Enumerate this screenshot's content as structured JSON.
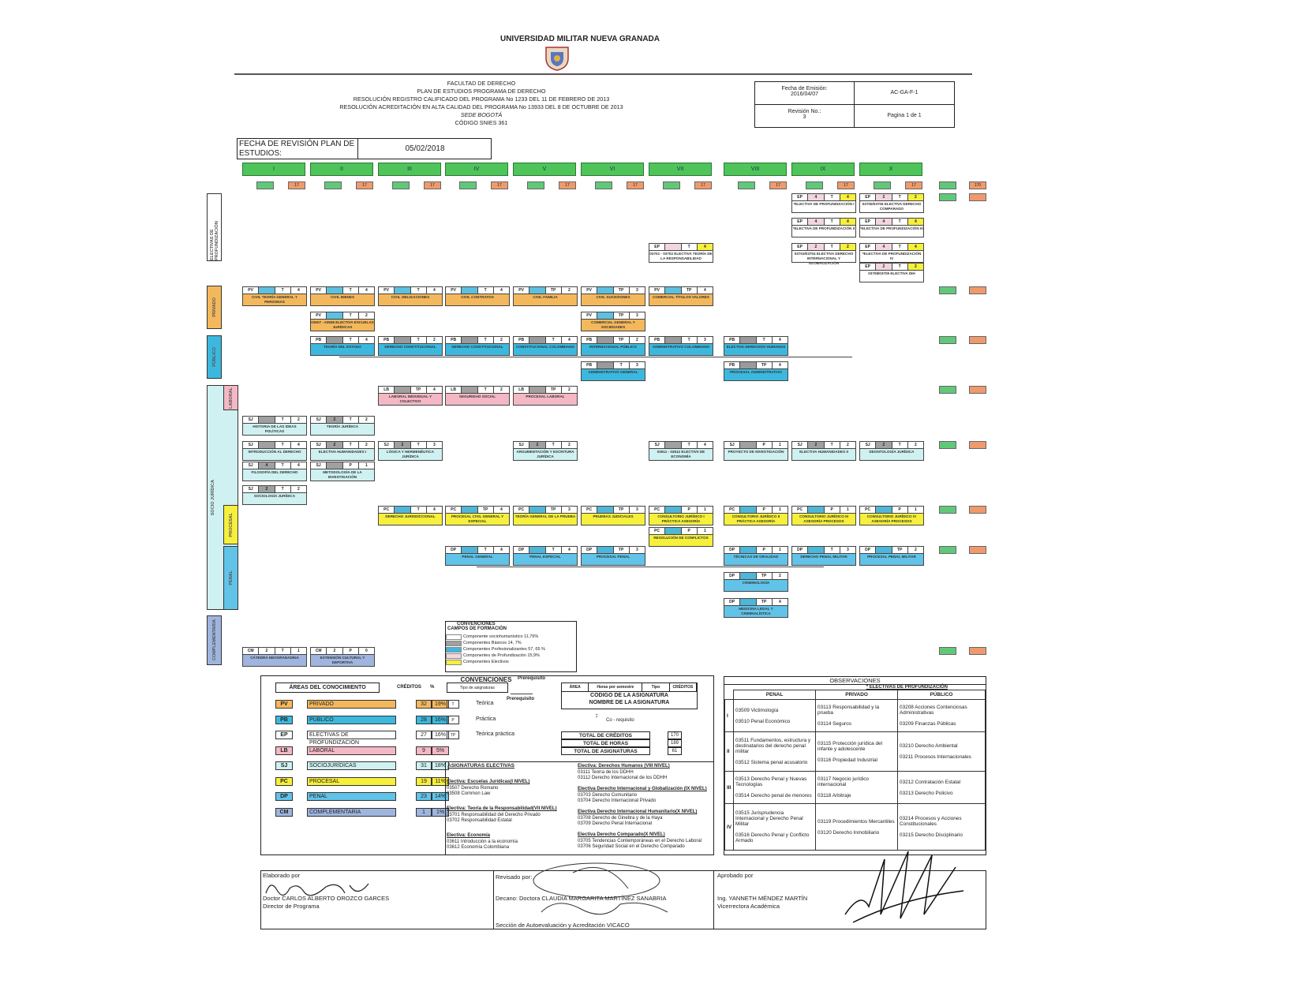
{
  "header": {
    "university": "UNIVERSIDAD MILITAR NUEVA GRANADA",
    "faculty": "FACULTAD DE DERECHO",
    "plan": "PLAN DE ESTUDIOS PROGRAMA DE DERECHO",
    "res1": "RESOLUCIÓN REGISTRO CALIFICADO DEL PROGRAMA No 1233 DEL 11 DE FEBRERO DE 2013",
    "res2": "RESOLUCIÓN ACREDITACIÓN EN ALTA CALIDAD DEL PROGRAMA No 13933 DEL 8 DE OCTUBRE DE 2013",
    "sede": "SEDE BOGOTÁ",
    "snies": "CÓDIGO SNIES 361"
  },
  "docinfo": {
    "fecha_label": "Fecha de Emisión:",
    "fecha": "2016/04/07",
    "code": "AC-GA-F-1",
    "rev_label": "Revisión No.:",
    "rev": "3",
    "page": "Pagina 1 de 1"
  },
  "revision": {
    "label": "FECHA DE REVISIÓN PLAN DE ESTUDIOS:",
    "value": "05/02/2018"
  },
  "semesters": [
    "I",
    "II",
    "III",
    "IV",
    "V",
    "VI",
    "VII",
    "VIII",
    "IX",
    "X"
  ],
  "semester_hours_label": "17",
  "totals_top": "170",
  "side_labels": {
    "ep": "ELECTIVAS DE PROFUNDIZACIÓN",
    "pv": "PRIVADO",
    "pb": "PÚBLICO",
    "sj": "SOCIO JURÍDICA",
    "lb": "LABORAL",
    "pc": "PROCESAL",
    "dp": "PENAL",
    "cm": "COMPLEMENTARIA"
  },
  "colors": {
    "PV": "#f4b85c",
    "PB": "#3cb8de",
    "EP": "#ffffff",
    "LB": "#f4b8c4",
    "SJ": "#cff1f1",
    "PC": "#f6ef3c",
    "DP": "#62c3e8",
    "CM": "#9fb5de",
    "header": "#4ec45a",
    "hours": "#ef9a6c"
  },
  "courses": [
    {
      "sem": 6,
      "area": "EP",
      "hours": "",
      "type": "T",
      "credits": "4",
      "name": "03701 - 03702 ELECTIVA TEORÍA DE LA RESPONSABILIDAD"
    },
    {
      "sem": 8,
      "area": "EP",
      "hours": "4",
      "type": "T",
      "credits": "4",
      "name": "*ELECTIVA DE PROFUNDIZACIÓN I"
    },
    {
      "sem": 8,
      "area": "EP",
      "hours": "4",
      "type": "T",
      "credits": "4",
      "name": "*ELECTIVA DE PROFUNDIZACIÓN II"
    },
    {
      "sem": 8,
      "area": "EP",
      "hours": "2",
      "type": "T",
      "credits": "2",
      "name": "03703/03704 ELECTIVA DERECHO INTERNACIONAL Y GLOBALIZACIÓN"
    },
    {
      "sem": 9,
      "area": "EP",
      "hours": "2",
      "type": "T",
      "credits": "2",
      "name": "03705/03706 ELECTIVA DERECHO COMPARADO"
    },
    {
      "sem": 9,
      "area": "EP",
      "hours": "4",
      "type": "T",
      "credits": "4",
      "name": "*ELECTIVA DE PROFUNDIZACIÓN III"
    },
    {
      "sem": 9,
      "area": "EP",
      "hours": "4",
      "type": "T",
      "credits": "4",
      "name": "*ELECTIVA DE PROFUNDIZACIÓN IV"
    },
    {
      "sem": 9,
      "area": "EP",
      "hours": "2",
      "type": "T",
      "credits": "2",
      "name": "03708/03709 ELECTIVA DIH"
    },
    {
      "sem": 0,
      "area": "PV",
      "hours": "",
      "type": "T",
      "credits": "4",
      "name": "CIVIL TEORÍA GENERAL Y PERSONAS"
    },
    {
      "sem": 1,
      "area": "PV",
      "hours": "",
      "type": "T",
      "credits": "4",
      "name": "CIVIL BIENES"
    },
    {
      "sem": 2,
      "area": "PV",
      "hours": "",
      "type": "T",
      "credits": "4",
      "name": "CIVIL OBLIGACIONES"
    },
    {
      "sem": 3,
      "area": "PV",
      "hours": "",
      "type": "T",
      "credits": "4",
      "name": "CIVIL CONTRATOS"
    },
    {
      "sem": 4,
      "area": "PV",
      "hours": "",
      "type": "TP",
      "credits": "2",
      "name": "CIVIL FAMILIA"
    },
    {
      "sem": 5,
      "area": "PV",
      "hours": "",
      "type": "TP",
      "credits": "3",
      "name": "CIVIL SUCESIONES"
    },
    {
      "sem": 6,
      "area": "PV",
      "hours": "",
      "type": "TP",
      "credits": "4",
      "name": "COMERCIAL TÍTULOS VALORES"
    },
    {
      "sem": 1,
      "area": "PV",
      "hours": "",
      "type": "T",
      "credits": "2",
      "name": "03507 - 03508 ELECTIVA ESCUELAS JURÍDICAS"
    },
    {
      "sem": 5,
      "area": "PV",
      "hours": "",
      "type": "TP",
      "credits": "3",
      "name": "COMERCIAL GENERAL Y SOCIEDADES"
    },
    {
      "sem": 1,
      "area": "PB",
      "hours": "",
      "type": "T",
      "credits": "4",
      "name": "TEORÍA DEL ESTADO"
    },
    {
      "sem": 2,
      "area": "PB",
      "hours": "",
      "type": "T",
      "credits": "2",
      "name": "DERECHO CONSTITUCIONAL"
    },
    {
      "sem": 3,
      "area": "PB",
      "hours": "",
      "type": "T",
      "credits": "2",
      "name": "DERECHO CONSTITUCIONAL"
    },
    {
      "sem": 4,
      "area": "PB",
      "hours": "",
      "type": "T",
      "credits": "4",
      "name": "CONSTITUCIONAL COLOMBIANO"
    },
    {
      "sem": 5,
      "area": "PB",
      "hours": "",
      "type": "TP",
      "credits": "2",
      "name": "INTERNACIONAL PÚBLICO"
    },
    {
      "sem": 6,
      "area": "PB",
      "hours": "",
      "type": "T",
      "credits": "3",
      "name": "ADMINISTRATIVO COLOMBIANO"
    },
    {
      "sem": 7,
      "area": "PB",
      "hours": "",
      "type": "T",
      "credits": "4",
      "name": "ELECTIVA DERECHOS HUMANOS"
    },
    {
      "sem": 5,
      "area": "PB",
      "hours": "",
      "type": "T",
      "credits": "3",
      "name": "ADMINISTRATIVO GENERAL"
    },
    {
      "sem": 7,
      "area": "PB",
      "hours": "",
      "type": "TP",
      "credits": "4",
      "name": "PROCESAL ADMINISTRATIVO"
    },
    {
      "sem": 2,
      "area": "LB",
      "hours": "",
      "type": "TP",
      "credits": "4",
      "name": "LABORAL INDIVIDUAL Y COLECTIVO"
    },
    {
      "sem": 3,
      "area": "LB",
      "hours": "",
      "type": "T",
      "credits": "2",
      "name": "SEGURIDAD SOCIAL"
    },
    {
      "sem": 4,
      "area": "LB",
      "hours": "",
      "type": "TP",
      "credits": "2",
      "name": "PROCESAL LABORAL"
    },
    {
      "sem": 0,
      "area": "SJ",
      "hours": "",
      "type": "T",
      "credits": "2",
      "name": "HISTORIA DE LAS IDEAS POLÍTICAS"
    },
    {
      "sem": 1,
      "area": "SJ",
      "hours": "2",
      "type": "T",
      "credits": "2",
      "name": "TEORÍA JURÍDICA"
    },
    {
      "sem": 0,
      "area": "SJ",
      "hours": "",
      "type": "T",
      "credits": "4",
      "name": "INTRODUCCIÓN AL DERECHO"
    },
    {
      "sem": 1,
      "area": "SJ",
      "hours": "2",
      "type": "T",
      "credits": "2",
      "name": "ELECTIVA HUMANIDADES I"
    },
    {
      "sem": 2,
      "area": "SJ",
      "hours": "2",
      "type": "T",
      "credits": "3",
      "name": "LÓGICA Y HERMENÉUTICA JURÍDICA"
    },
    {
      "sem": 4,
      "area": "SJ",
      "hours": "2",
      "type": "T",
      "credits": "2",
      "name": "ARGUMENTACIÓN Y ESCRITURA JURÍDICA"
    },
    {
      "sem": 6,
      "area": "SJ",
      "hours": "",
      "type": "T",
      "credits": "4",
      "name": "03611 - 03612 ELECTIVA DE ECONOMÍA"
    },
    {
      "sem": 7,
      "area": "SJ",
      "hours": "",
      "type": "P",
      "credits": "1",
      "name": "PROYECTO DE INVESTIGACIÓN"
    },
    {
      "sem": 8,
      "area": "SJ",
      "hours": "2",
      "type": "T",
      "credits": "2",
      "name": "ELECTIVA HUMANIDADES II"
    },
    {
      "sem": 9,
      "area": "SJ",
      "hours": "2",
      "type": "T",
      "credits": "2",
      "name": "DEONTOLOGÍA JURÍDICA"
    },
    {
      "sem": 0,
      "area": "SJ",
      "hours": "4",
      "type": "T",
      "credits": "4",
      "name": "FILOSOFÍA DEL DERECHO"
    },
    {
      "sem": 1,
      "area": "SJ",
      "hours": "",
      "type": "P",
      "credits": "1",
      "name": "METODOLOGÍA DE LA INVESTIGACIÓN"
    },
    {
      "sem": 0,
      "area": "SJ",
      "hours": "2",
      "type": "T",
      "credits": "2",
      "name": "SOCIOLOGÍA JURÍDICA"
    },
    {
      "sem": 2,
      "area": "PC",
      "hours": "",
      "type": "T",
      "credits": "4",
      "name": "DERECHO JURISDICCIONAL"
    },
    {
      "sem": 3,
      "area": "PC",
      "hours": "",
      "type": "TP",
      "credits": "4",
      "name": "PROCESAL CIVIL GENERAL Y ESPECIAL"
    },
    {
      "sem": 4,
      "area": "PC",
      "hours": "",
      "type": "TP",
      "credits": "3",
      "name": "TEORÍA GENERAL DE LA PRUEBA"
    },
    {
      "sem": 5,
      "area": "PC",
      "hours": "",
      "type": "TP",
      "credits": "3",
      "name": "PRUEBAS JUDICIALES"
    },
    {
      "sem": 6,
      "area": "PC",
      "hours": "",
      "type": "P",
      "credits": "1",
      "name": "CONSULTORIO JURÍDICO I PRÁCTICA ASESORÍA"
    },
    {
      "sem": 7,
      "area": "PC",
      "hours": "",
      "type": "P",
      "credits": "1",
      "name": "CONSULTORIO JURÍDICO II PRÁCTICA ASESORÍA"
    },
    {
      "sem": 8,
      "area": "PC",
      "hours": "",
      "type": "P",
      "credits": "1",
      "name": "CONSULTORIO JURÍDICO III ASESORÍA PROCESOS"
    },
    {
      "sem": 9,
      "area": "PC",
      "hours": "",
      "type": "P",
      "credits": "1",
      "name": "CONSULTORIO JURÍDICO IV ASESORÍA PROCESOS"
    },
    {
      "sem": 6,
      "area": "PC",
      "hours": "",
      "type": "P",
      "credits": "1",
      "name": "RESOLUCIÓN DE CONFLICTOS"
    },
    {
      "sem": 3,
      "area": "DP",
      "hours": "",
      "type": "T",
      "credits": "4",
      "name": "PENAL GENERAL"
    },
    {
      "sem": 4,
      "area": "DP",
      "hours": "",
      "type": "T",
      "credits": "4",
      "name": "PENAL ESPECIAL"
    },
    {
      "sem": 5,
      "area": "DP",
      "hours": "",
      "type": "TP",
      "credits": "3",
      "name": "PROCESAL PENAL"
    },
    {
      "sem": 7,
      "area": "DP",
      "hours": "",
      "type": "P",
      "credits": "1",
      "name": "TÉCNICAS DE ORALIDAD"
    },
    {
      "sem": 8,
      "area": "DP",
      "hours": "",
      "type": "T",
      "credits": "3",
      "name": "DERECHO PENAL MILITAR"
    },
    {
      "sem": 9,
      "area": "DP",
      "hours": "",
      "type": "TP",
      "credits": "2",
      "name": "PROCESAL PENAL MILITAR"
    },
    {
      "sem": 7,
      "area": "DP",
      "hours": "",
      "type": "TP",
      "credits": "2",
      "name": "CRIMINOLOGÍA"
    },
    {
      "sem": 7,
      "area": "DP",
      "hours": "",
      "type": "TP",
      "credits": "4",
      "name": "MEDICINA LEGAL Y CRIMINALÍSTICA"
    },
    {
      "sem": 0,
      "area": "CM",
      "hours": "2",
      "type": "T",
      "credits": "1",
      "name": "CÁTEDRA NEOGRANADINA"
    },
    {
      "sem": 1,
      "area": "CM",
      "hours": "2",
      "type": "P",
      "credits": "0",
      "name": "EXTENSIÓN CULTURAL Y DEPORTIVA"
    }
  ],
  "campos": {
    "title": "CONVENCIONES",
    "subtitle": "CAMPOS DE FORMACIÓN",
    "items": [
      {
        "label": "Componente sociohumanístico 11,76%",
        "color": "#ffffff"
      },
      {
        "label": "Componentes Básicos 14, 7%",
        "color": "#a0a0a0"
      },
      {
        "label": "Componentes Profesionalizantes 57, 65 %",
        "color": "#3cb8de"
      },
      {
        "label": "Componentes de Profundización 15,9%",
        "color": "#f4d8e0"
      },
      {
        "label": "Componentes Electivos",
        "color": "#f6ef3c"
      }
    ]
  },
  "convenciones": {
    "title": "CONVENCIONES",
    "prereq": "Prerequisito",
    "areas_title": "ÁREAS DEL CONOCIMIENTO",
    "creditos": "CRÉDITOS",
    "pct": "%",
    "tipo_title": "Tipo de asignaturas",
    "areas": [
      {
        "code": "PV",
        "name": "PRIVADO",
        "credits": "32",
        "pct": "19%",
        "color": "#f4b85c"
      },
      {
        "code": "PB",
        "name": "PÚBLICO",
        "credits": "28",
        "pct": "16%",
        "color": "#3cb8de"
      },
      {
        "code": "EP",
        "name": "ELECTIVAS DE PROFUNDIZACIÓN",
        "credits": "27",
        "pct": "16%",
        "color": "#ffffff"
      },
      {
        "code": "LB",
        "name": "LABORAL",
        "credits": "9",
        "pct": "5%",
        "color": "#f4b8c4"
      },
      {
        "code": "SJ",
        "name": "SOCIOJURÍDICAS",
        "credits": "31",
        "pct": "18%",
        "color": "#cff1f1"
      },
      {
        "code": "PC",
        "name": "PROCESAL",
        "credits": "19",
        "pct": "11%",
        "color": "#f6ef3c"
      },
      {
        "code": "DP",
        "name": "PENAL",
        "credits": "23",
        "pct": "14%",
        "color": "#62c3e8"
      },
      {
        "code": "CM",
        "name": "COMPLEMENTARIA",
        "credits": "1",
        "pct": "1%",
        "color": "#9fb5de"
      }
    ],
    "tipos": [
      {
        "code": "T",
        "name": "Teórica"
      },
      {
        "code": "P",
        "name": "Práctica"
      },
      {
        "code": "TP",
        "name": "Teórica práctica"
      }
    ],
    "key_headers": [
      "ÁREA",
      "Horas por semestre",
      "Tipo",
      "CRÉDITOS"
    ],
    "key_code": "CÓDIGO DE LA ASIGNATURA",
    "key_name": "NOMBRE DE LA ASIGNATURA",
    "coreq": "Co - requisito",
    "totals": [
      {
        "label": "TOTAL DE CRÉDITOS",
        "value": "170"
      },
      {
        "label": "TOTAL DE HORAS",
        "value": "189"
      },
      {
        "label": "TOTAL DE ASIGNATURAS",
        "value": "61"
      }
    ],
    "electivas_title": "ASIGNATURAS ELECTIVAS",
    "electivas": [
      {
        "title": "Electiva: Escuelas Jurídicas(I NIVEL)",
        "items": [
          "03507 Derecho Romano",
          "03508 Common Law"
        ]
      },
      {
        "title": "Electiva: Teoría de la Responsabilidad(VII NIVEL)",
        "items": [
          "03701 Responsabilidad del Derecho Privado",
          "03702 Responsabilidad Estatal"
        ]
      },
      {
        "title": "Electiva: Economía",
        "items": [
          "03611 Introducción a la economía",
          "03612 Economía Colombiana"
        ]
      },
      {
        "title": "Electiva: Derechos Humanos (VIII NIVEL)",
        "items": [
          "03111 Teoría de los DDHH",
          "03112 Derecho Internacional de los DDHH"
        ]
      },
      {
        "title": "Electiva Derecho Internacional y Globalización (IX NIVEL)",
        "items": [
          "03703 Derecho Comunitario",
          "03704 Derecho Internacional Privado"
        ]
      },
      {
        "title": "Electiva Derecho Internacional Humanitario(X NIVEL)",
        "items": [
          "03708 Derecho de Ginebra y de la Haya",
          "03709 Derecho Penal Internacional"
        ]
      },
      {
        "title": "Electiva Derecho Comparado(X NIVEL)",
        "items": [
          "03705 Tendencias Contemporáneas en el Derecho Laboral",
          "03706 Seguridad Social en el Derecho Comparado"
        ]
      }
    ]
  },
  "observaciones": {
    "title": "OBSERVACIONES",
    "subtitle": "* ELECTIVAS DE PROFUNDIZACIÓN",
    "cols": [
      "PENAL",
      "PRIVADO",
      "PÚBLICO"
    ],
    "rows": [
      {
        "level": "I",
        "penal": [
          "03509 Victimología",
          "03510 Penal Económico"
        ],
        "privado": [
          "03113 Responsabilidad y la prueba",
          "03114 Seguros"
        ],
        "publico": [
          "03208 Acciones Contenciosas Administrativas",
          "03209 Finanzas Públicas"
        ]
      },
      {
        "level": "II",
        "penal": [
          "03511 Fundamentos, estructura y destinatarios del derecho penal militar",
          "03512 Sistema penal acusatorio"
        ],
        "privado": [
          "03115 Protección jurídica del infante y adolescente",
          "03116 Propiedad Industrial"
        ],
        "publico": [
          "03210 Derecho Ambiental",
          "03211 Procesos Internacionales"
        ]
      },
      {
        "level": "III",
        "penal": [
          "03513 Derecho Penal y Nuevas Tecnologías",
          "03514 Derecho penal de menores"
        ],
        "privado": [
          "03117 Negocio jurídico internacional",
          "03118 Arbitraje"
        ],
        "publico": [
          "03212 Contratación Estatal",
          "03213 Derecho Policivo"
        ]
      },
      {
        "level": "IV",
        "penal": [
          "03515 Jurisprudencia Internacional y Derecho Penal Militar",
          "03516 Derecho Penal y Conflicto Armado"
        ],
        "privado": [
          "03119 Procedimientos Mercantiles",
          "03120 Derecho Inmobiliario"
        ],
        "publico": [
          "03214 Procesos y Acciones Constitucionales",
          "03215 Derecho Disciplinario"
        ]
      }
    ]
  },
  "firmas": {
    "elaborado": "Elaborado por",
    "elaborado_name": "Doctor CARLOS ALBERTO OROZCO GARCES",
    "elaborado_role": "Director de Programa",
    "revisado": "Revisado por:",
    "revisado_name": "Decano: Doctora CLAUDIA MARGARITA MARTÍNEZ SANABRIA",
    "revisado_role": "Sección de Autoevaluación y Acreditación VICACO",
    "aprobado": "Aprobado por",
    "aprobado_name": "Ing. YANNETH MÉNDEZ MARTÍN",
    "aprobado_role": "Vicerrectora Académica"
  }
}
